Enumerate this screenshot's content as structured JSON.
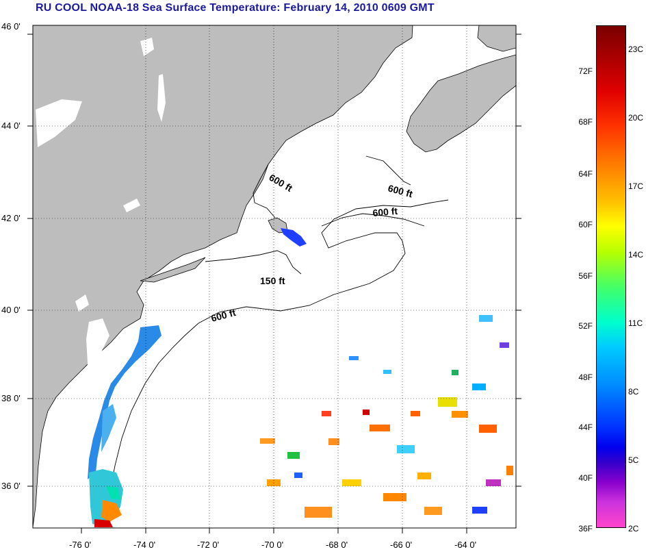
{
  "title": "RU COOL  NOAA-18  Sea Surface Temperature:  February 14, 2010 0609 GMT",
  "lat_ticks": [
    "46 0'",
    "44 0'",
    "42 0'",
    "40 0'",
    "38 0'",
    "36 0'"
  ],
  "lon_ticks": [
    "-76 0'",
    "-74 0'",
    "-72 0'",
    "-70 0'",
    "-68 0'",
    "-66 0'",
    "-64 0'"
  ],
  "contours": [
    "600 ft",
    "600 ft",
    "600 ft",
    "150 ft",
    "600 ft"
  ],
  "colorbar": {
    "fahrenheit": [
      "72F",
      "68F",
      "64F",
      "60F",
      "56F",
      "52F",
      "48F",
      "44F",
      "40F",
      "36F"
    ],
    "celsius": [
      "23C",
      "20C",
      "17C",
      "14C",
      "11C",
      "8C",
      "5C",
      "2C"
    ]
  },
  "colors": {
    "land": "#bdbdbd",
    "title": "#1a1aa0"
  }
}
